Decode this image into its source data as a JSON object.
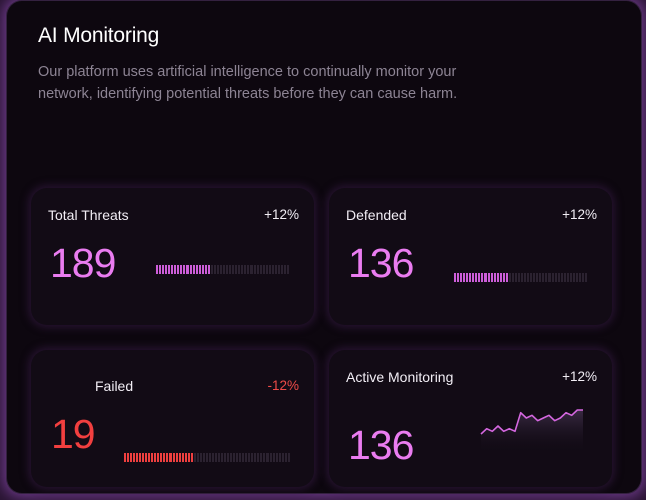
{
  "header": {
    "title": "AI Monitoring",
    "description": "Our platform uses artificial intelligence to continually monitor your network, identifying potential threats before they can cause harm."
  },
  "cards": [
    {
      "label": "Total Threats",
      "change": "+12%",
      "value": "189",
      "progress": 0.41,
      "accent": "#cd5ed9"
    },
    {
      "label": "Defended",
      "change": "+12%",
      "value": "136",
      "progress": 0.41,
      "accent": "#cd5ed9"
    },
    {
      "label": "Failed",
      "change": "-12%",
      "value": "19",
      "progress": 0.41,
      "accent": "#ef3f3f"
    },
    {
      "label": "Active Monitoring",
      "change": "+12%",
      "value": "136",
      "accent": "#cd5ed9",
      "sparkline": [
        4,
        6,
        5,
        7,
        5,
        6,
        5,
        12,
        10,
        11,
        9,
        10,
        11,
        9,
        10,
        12,
        11,
        13,
        13
      ]
    }
  ]
}
